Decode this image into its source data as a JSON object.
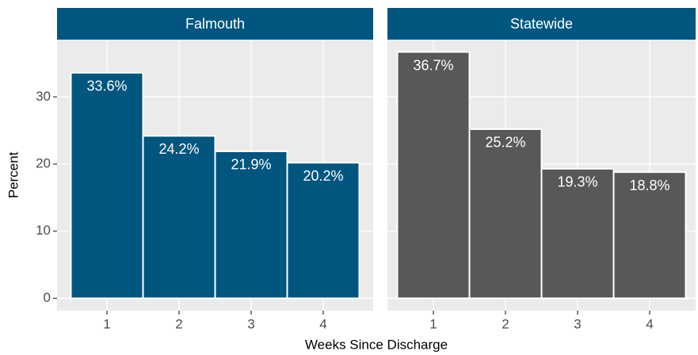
{
  "chart_data": [
    {
      "type": "bar",
      "title": "Falmouth",
      "ylabel": "Percent",
      "xlabel": "Weeks Since Discharge",
      "categories": [
        "1",
        "2",
        "3",
        "4"
      ],
      "values": [
        33.6,
        24.2,
        21.9,
        20.2
      ],
      "value_labels": [
        "33.6%",
        "24.2%",
        "21.9%",
        "20.2%"
      ],
      "color": "#00567f",
      "ylim": [
        -1.835,
        38.535
      ],
      "yticks": [
        0,
        10,
        20,
        30
      ],
      "grid": true
    },
    {
      "type": "bar",
      "title": "Statewide",
      "categories": [
        "1",
        "2",
        "3",
        "4"
      ],
      "values": [
        36.7,
        25.2,
        19.3,
        18.8
      ],
      "value_labels": [
        "36.7%",
        "25.2%",
        "19.3%",
        "18.8%"
      ],
      "color": "#58585b",
      "ylim": [
        -1.835,
        38.535
      ],
      "yticks": [
        0,
        10,
        20,
        30
      ],
      "grid": true
    }
  ]
}
